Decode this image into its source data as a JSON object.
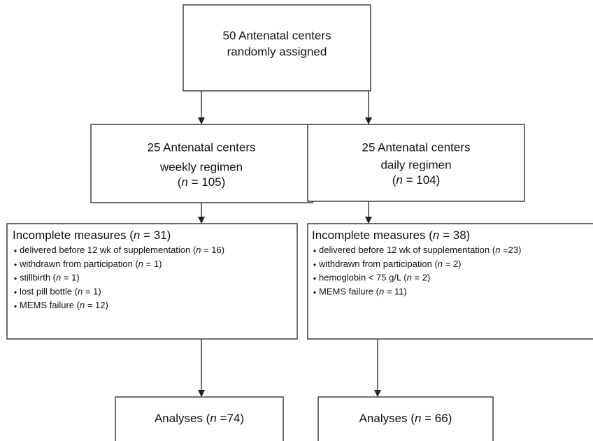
{
  "nodes": [
    {
      "lines": [
        "50 Antenatal centers",
        "randomly assigned"
      ]
    },
    {
      "lines": [
        "25 Antenatal centers",
        "weekly regimen",
        {
          "pre": "(",
          "em": "n",
          "post": " = 105)"
        }
      ]
    },
    {
      "lines": [
        "25 Antenatal centers",
        "daily regimen",
        {
          "pre": "(",
          "em": "n",
          "post": " = 104)"
        }
      ]
    },
    {
      "title": {
        "pre": "Incomplete measures (",
        "em": "n",
        "post": " = 31)"
      },
      "items": [
        {
          "pre": "delivered before 12 wk of supplementation (",
          "em": "n",
          "post": " = 16)"
        },
        {
          "pre": "withdrawn from participation (",
          "em": "n",
          "post": " = 1)"
        },
        {
          "pre": "stillbirth (",
          "em": "n",
          "post": " = 1)"
        },
        {
          "pre": "lost pill bottle (",
          "em": "n",
          "post": " = 1)"
        },
        {
          "pre": "MEMS failure (",
          "em": "n",
          "post": " = 12)"
        }
      ]
    },
    {
      "title": {
        "pre": "Incomplete measures (",
        "em": "n",
        "post": " = 38)"
      },
      "items": [
        {
          "pre": "delivered before 12 wk of supplementation (",
          "em": "n",
          "post": " =23)"
        },
        {
          "pre": "withdrawn from participation (",
          "em": "n",
          "post": " = 2)"
        },
        {
          "pre": "hemoglobin  < 75 g/L (",
          "em": "n",
          "post": " = 2)"
        },
        {
          "pre": "MEMS  failure (",
          "em": "n",
          "post": " = 11)"
        }
      ]
    },
    {
      "lines": [
        {
          "pre": "Analyses (",
          "em": "n",
          "post": " =74)"
        }
      ]
    },
    {
      "lines": [
        {
          "pre": "Analyses (",
          "em": "n",
          "post": " = 66)"
        }
      ]
    }
  ]
}
